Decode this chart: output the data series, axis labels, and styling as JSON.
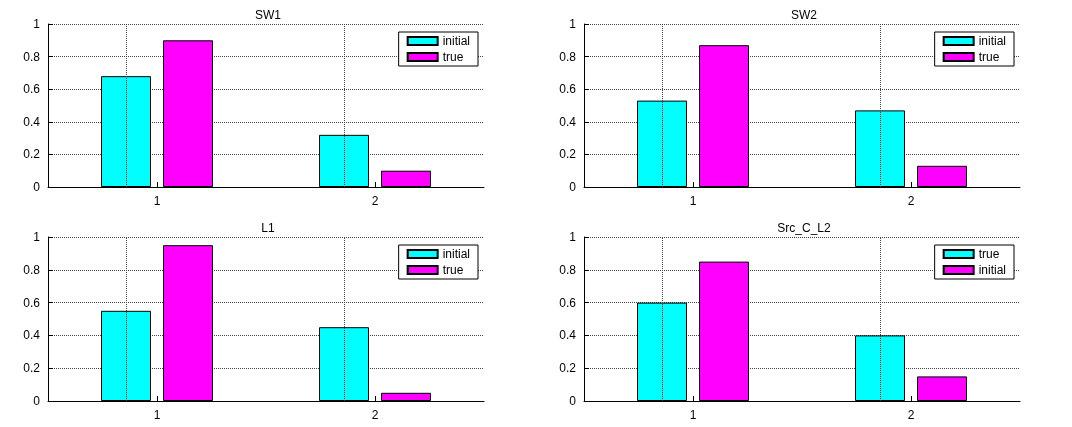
{
  "chart_data": [
    {
      "type": "bar",
      "title": "SW1",
      "categories": [
        "1",
        "2"
      ],
      "ylim": [
        0,
        1
      ],
      "yticks": [
        0,
        0.2,
        0.4,
        0.6,
        0.8,
        1
      ],
      "grid": true,
      "legend": "top right",
      "series": [
        {
          "name": "initial",
          "color": "#00ffff",
          "values": [
            0.68,
            0.32
          ]
        },
        {
          "name": "true",
          "color": "#ff00ff",
          "values": [
            0.9,
            0.1
          ]
        }
      ]
    },
    {
      "type": "bar",
      "title": "SW2",
      "categories": [
        "1",
        "2"
      ],
      "ylim": [
        0,
        1
      ],
      "yticks": [
        0,
        0.2,
        0.4,
        0.6,
        0.8,
        1
      ],
      "grid": true,
      "legend": "top right",
      "series": [
        {
          "name": "initial",
          "color": "#00ffff",
          "values": [
            0.53,
            0.47
          ]
        },
        {
          "name": "true",
          "color": "#ff00ff",
          "values": [
            0.87,
            0.13
          ]
        }
      ]
    },
    {
      "type": "bar",
      "title": "L1",
      "categories": [
        "1",
        "2"
      ],
      "ylim": [
        0,
        1
      ],
      "yticks": [
        0,
        0.2,
        0.4,
        0.6,
        0.8,
        1
      ],
      "grid": true,
      "legend": "top right",
      "series": [
        {
          "name": "initial",
          "color": "#00ffff",
          "values": [
            0.55,
            0.45
          ]
        },
        {
          "name": "true",
          "color": "#ff00ff",
          "values": [
            0.95,
            0.05
          ]
        }
      ]
    },
    {
      "type": "bar",
      "title": "Src_C_L2",
      "categories": [
        "1",
        "2"
      ],
      "ylim": [
        0,
        1
      ],
      "yticks": [
        0,
        0.2,
        0.4,
        0.6,
        0.8,
        1
      ],
      "grid": true,
      "legend": "top right",
      "series": [
        {
          "name": "true",
          "color": "#00ffff",
          "values": [
            0.6,
            0.4
          ]
        },
        {
          "name": "initial",
          "color": "#ff00ff",
          "values": [
            0.85,
            0.15
          ]
        }
      ]
    }
  ]
}
